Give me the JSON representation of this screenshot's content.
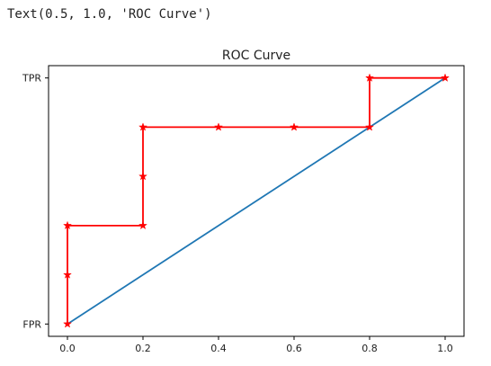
{
  "output": {
    "text": "Text(0.5, 1.0, 'ROC Curve')"
  },
  "chart_data": {
    "type": "line",
    "title": "ROC Curve",
    "xlabel": "",
    "ylabel": "",
    "xlim": [
      -0.05,
      1.05
    ],
    "ylim": [
      -0.05,
      1.05
    ],
    "x_ticks": [
      {
        "value": 0.0,
        "label": "0.0"
      },
      {
        "value": 0.2,
        "label": "0.2"
      },
      {
        "value": 0.4,
        "label": "0.4"
      },
      {
        "value": 0.6,
        "label": "0.6"
      },
      {
        "value": 0.8,
        "label": "0.8"
      },
      {
        "value": 1.0,
        "label": "1.0"
      }
    ],
    "y_ticks": [
      {
        "value": 0.0,
        "label": "FPR"
      },
      {
        "value": 1.0,
        "label": "TPR"
      }
    ],
    "grid": false,
    "series": [
      {
        "color": "#1f77b4",
        "marker": "none",
        "x": [
          0.0,
          1.0
        ],
        "y": [
          0.0,
          1.0
        ]
      },
      {
        "color": "#ff0000",
        "marker": "star",
        "x": [
          0.0,
          0.0,
          0.0,
          0.2,
          0.2,
          0.2,
          0.4,
          0.6,
          0.8,
          0.8,
          1.0
        ],
        "y": [
          0.0,
          0.2,
          0.4,
          0.4,
          0.6,
          0.8,
          0.8,
          0.8,
          0.8,
          1.0,
          1.0
        ]
      }
    ]
  }
}
